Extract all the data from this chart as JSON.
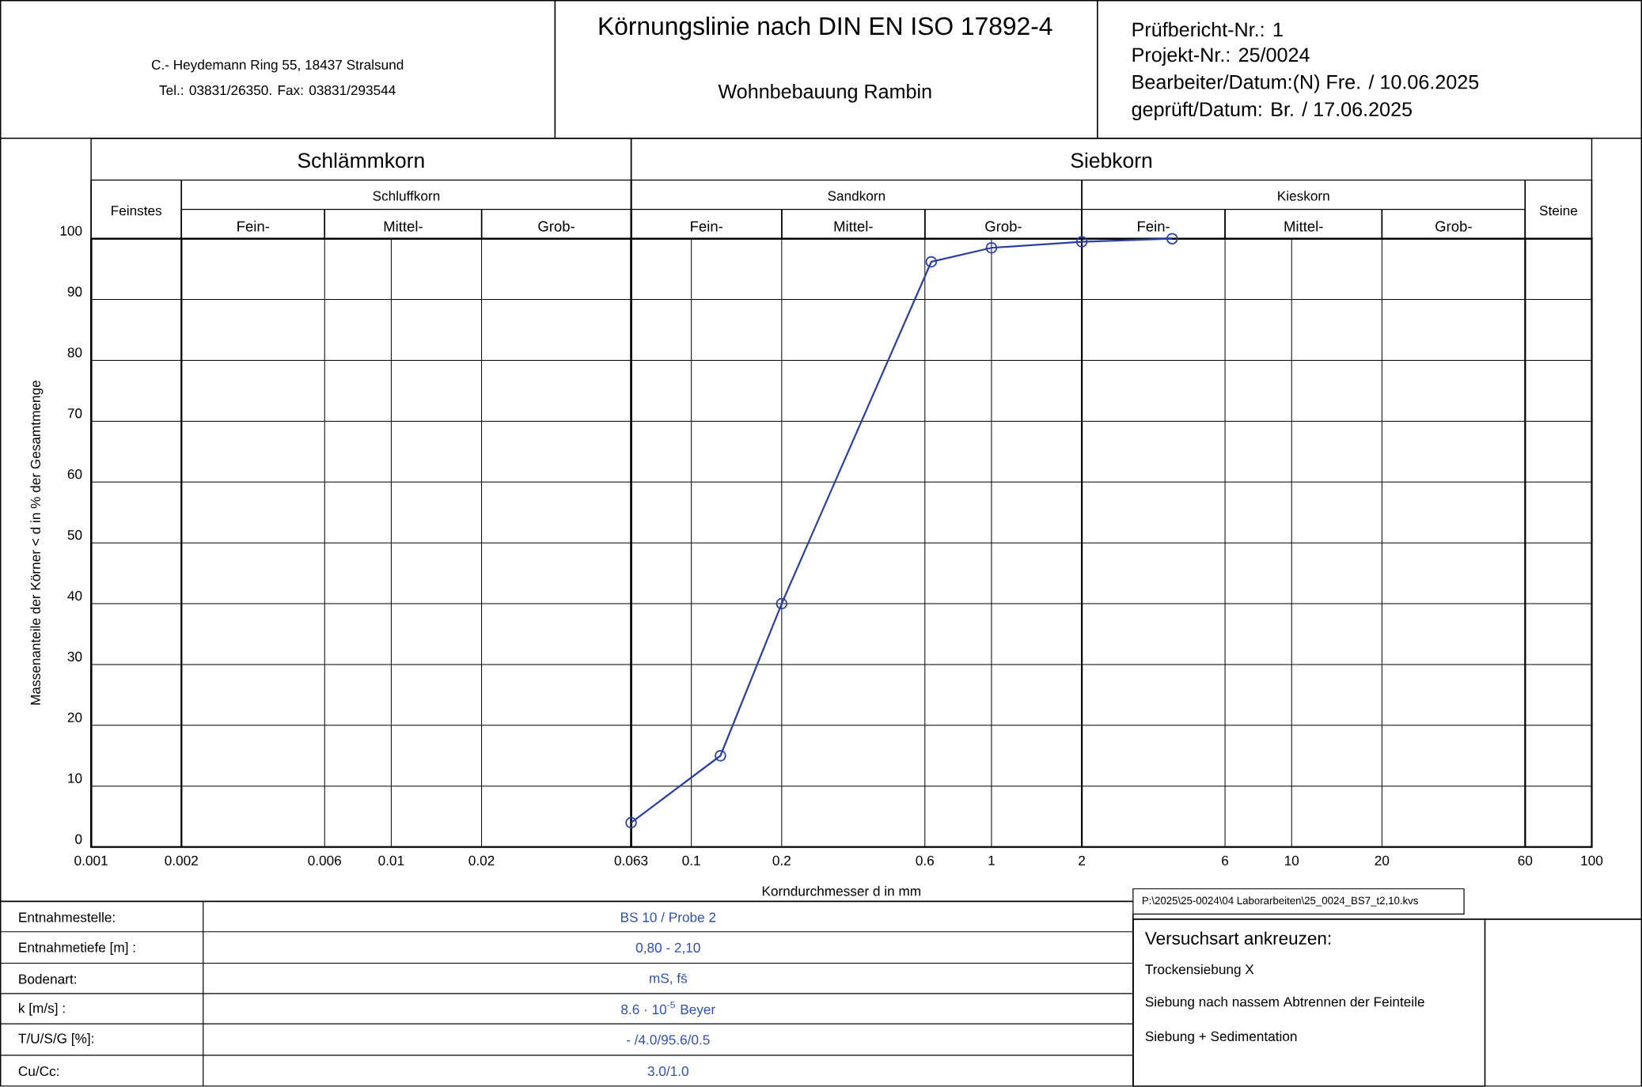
{
  "chart_data": {
    "type": "line",
    "title": "Körnungslinie nach DIN EN ISO 17892-4",
    "subtitle": "Wohnbebauung Rambin",
    "xlabel": "Korndurchmesser d in mm",
    "ylabel": "Massenanteile der Körner < d in % der Gesamtmenge",
    "x": [
      0.063,
      0.125,
      0.2,
      0.63,
      1,
      2,
      4
    ],
    "series": [
      {
        "color": "#2b3fa0",
        "values": [
          4.0,
          15,
          40,
          96.2,
          98.5,
          99.5,
          100
        ]
      }
    ],
    "log": "x",
    "xlim": [
      0.001,
      100
    ],
    "ylim": [
      0,
      100
    ],
    "xticks": [
      0.001,
      0.002,
      0.006,
      0.01,
      0.02,
      0.063,
      0.1,
      0.2,
      0.6,
      1,
      2,
      6,
      10,
      20,
      60,
      100
    ],
    "yticks": [
      0,
      10,
      20,
      30,
      40,
      50,
      60,
      70,
      80,
      90,
      100
    ],
    "grid": true,
    "marker": "circle",
    "line_style": "solid",
    "annotations": [
      "C.- Heydemann Ring 55, 18437 Stralsund",
      "Tel.: 03831/26350. Fax: 03831/293544",
      "Prüfbericht-Nr.:  1",
      "Projekt-Nr.:  25/0024",
      "Bearbeiter/Datum:(N)  Fre. / 10.06.2025",
      "geprüft/Datum:  Br. / 17.06.2025",
      "P:\\2025\\25-0024\\04 Laborarbeiten\\25_0024_BS7_t2,10.kvs",
      "Entnahmestelle:",
      "BS 10 / Probe 2",
      "Entnahmetiefe [m] :",
      "0,80 - 2,10",
      "Bodenart:",
      "mS, fs̄",
      "k [m/s] :",
      "8.6 · 10$^{-5}$  Beyer",
      "T/U/S/G [%]:",
      "- /4.0/95.6/0.5",
      "Cu/Cc:",
      "3.0/1.0",
      "Versuchsart ankreuzen:",
      "Trockensiebung  X",
      "Siebung nach nassem Abtrennen der Feinteile",
      "Siebung + Sedimentation",
      "Schlämmkorn",
      "Siebkorn",
      "Feinstes",
      "Schluffkorn",
      "Sandkorn",
      "Kieskorn",
      "Steine",
      "Fein-",
      "Mittel-",
      "Grob-",
      "Fein-",
      "Mittel-",
      "Grob-",
      "Fein-",
      "Mittel-",
      "Grob-"
    ]
  }
}
